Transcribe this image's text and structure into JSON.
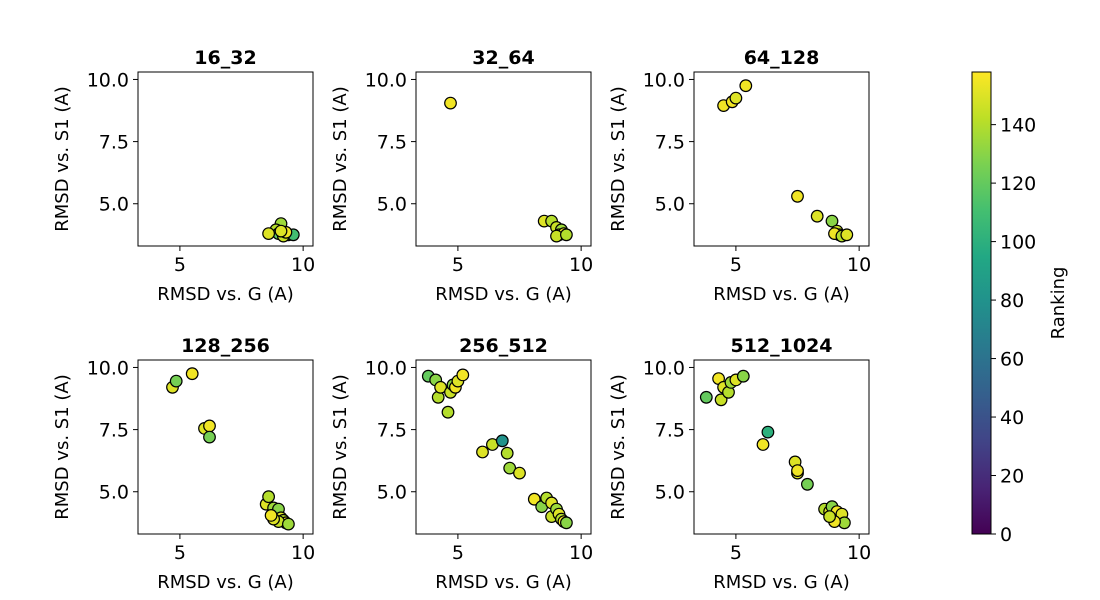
{
  "chart_data": {
    "type": "scatter",
    "xlabel": "RMSD vs. G (A)",
    "ylabel": "RMSD vs. S1 (A)",
    "xlim": [
      3.3,
      10.4
    ],
    "ylim": [
      3.3,
      10.3
    ],
    "xticks": [
      5,
      10
    ],
    "yticks": [
      5.0,
      7.5,
      10.0
    ],
    "xtick_labels": [
      "5",
      "10"
    ],
    "ytick_labels": [
      "5.0",
      "7.5",
      "10.0"
    ],
    "grid": false,
    "colormap": "viridis",
    "colorbar": {
      "label": "Ranking",
      "range": [
        0,
        158
      ],
      "ticks": [
        0,
        20,
        40,
        60,
        80,
        100,
        120,
        140
      ],
      "tick_labels": [
        "0",
        "20",
        "40",
        "60",
        "80",
        "100",
        "120",
        "140"
      ]
    },
    "subplots": [
      {
        "title": "16_32",
        "points": [
          [
            9.4,
            3.75,
            50
          ],
          [
            9.1,
            4.2,
            135
          ],
          [
            8.9,
            3.95,
            140
          ],
          [
            9.0,
            3.8,
            120
          ],
          [
            9.6,
            3.75,
            110
          ],
          [
            9.2,
            3.7,
            145
          ],
          [
            8.6,
            3.8,
            150
          ],
          [
            9.3,
            3.85,
            155
          ],
          [
            9.1,
            3.9,
            150
          ]
        ]
      },
      {
        "title": "32_64",
        "points": [
          [
            4.7,
            9.05,
            155
          ],
          [
            8.5,
            4.3,
            150
          ],
          [
            8.8,
            4.3,
            140
          ],
          [
            9.0,
            4.05,
            145
          ],
          [
            9.2,
            3.95,
            135
          ],
          [
            9.1,
            3.75,
            150
          ],
          [
            9.3,
            3.8,
            155
          ],
          [
            9.0,
            3.7,
            145
          ],
          [
            9.4,
            3.75,
            140
          ]
        ]
      },
      {
        "title": "64_128",
        "points": [
          [
            4.5,
            8.95,
            155
          ],
          [
            4.85,
            9.1,
            155
          ],
          [
            5.0,
            9.25,
            150
          ],
          [
            5.4,
            9.75,
            155
          ],
          [
            7.5,
            5.3,
            155
          ],
          [
            8.3,
            4.5,
            150
          ],
          [
            8.9,
            4.3,
            130
          ],
          [
            9.1,
            3.9,
            145
          ],
          [
            9.2,
            3.75,
            150
          ],
          [
            9.0,
            3.8,
            155
          ],
          [
            9.3,
            3.7,
            140
          ],
          [
            9.5,
            3.75,
            150
          ]
        ]
      },
      {
        "title": "128_256",
        "points": [
          [
            4.7,
            9.2,
            150
          ],
          [
            4.85,
            9.45,
            125
          ],
          [
            5.5,
            9.75,
            155
          ],
          [
            6.0,
            7.55,
            150
          ],
          [
            6.2,
            7.65,
            155
          ],
          [
            6.2,
            7.2,
            125
          ],
          [
            8.5,
            4.5,
            150
          ],
          [
            8.6,
            4.8,
            140
          ],
          [
            8.8,
            4.35,
            135
          ],
          [
            8.9,
            4.1,
            145
          ],
          [
            9.0,
            4.3,
            130
          ],
          [
            9.1,
            3.95,
            150
          ],
          [
            9.2,
            3.85,
            140
          ],
          [
            9.3,
            3.75,
            155
          ],
          [
            9.0,
            3.8,
            145
          ],
          [
            8.8,
            3.9,
            150
          ],
          [
            9.4,
            3.7,
            135
          ],
          [
            8.7,
            4.05,
            155
          ]
        ]
      },
      {
        "title": "256_512",
        "points": [
          [
            3.8,
            9.65,
            120
          ],
          [
            4.1,
            9.5,
            130
          ],
          [
            4.2,
            8.8,
            140
          ],
          [
            4.3,
            9.2,
            150
          ],
          [
            4.6,
            8.2,
            140
          ],
          [
            4.7,
            9.0,
            145
          ],
          [
            4.8,
            9.3,
            130
          ],
          [
            4.9,
            9.2,
            155
          ],
          [
            5.0,
            9.45,
            150
          ],
          [
            5.2,
            9.7,
            155
          ],
          [
            6.0,
            6.6,
            150
          ],
          [
            6.4,
            6.9,
            145
          ],
          [
            6.8,
            7.05,
            80
          ],
          [
            7.0,
            6.55,
            140
          ],
          [
            7.1,
            5.95,
            135
          ],
          [
            7.5,
            5.75,
            150
          ],
          [
            8.1,
            4.7,
            155
          ],
          [
            8.4,
            4.4,
            130
          ],
          [
            8.6,
            4.75,
            140
          ],
          [
            8.8,
            4.55,
            150
          ],
          [
            8.8,
            4.0,
            145
          ],
          [
            9.0,
            4.3,
            135
          ],
          [
            9.1,
            4.1,
            150
          ],
          [
            9.2,
            3.9,
            140
          ],
          [
            9.3,
            3.8,
            155
          ],
          [
            9.4,
            3.75,
            130
          ]
        ]
      },
      {
        "title": "512_1024",
        "points": [
          [
            3.8,
            8.8,
            120
          ],
          [
            4.3,
            9.55,
            155
          ],
          [
            4.4,
            8.7,
            145
          ],
          [
            4.5,
            9.2,
            150
          ],
          [
            4.7,
            9.0,
            140
          ],
          [
            4.8,
            9.4,
            135
          ],
          [
            5.0,
            9.5,
            150
          ],
          [
            5.3,
            9.65,
            130
          ],
          [
            6.1,
            6.9,
            155
          ],
          [
            6.3,
            7.4,
            100
          ],
          [
            7.4,
            6.2,
            150
          ],
          [
            7.5,
            5.75,
            150
          ],
          [
            7.5,
            5.85,
            155
          ],
          [
            7.9,
            5.3,
            125
          ],
          [
            8.6,
            4.3,
            140
          ],
          [
            8.8,
            4.2,
            150
          ],
          [
            8.9,
            4.4,
            130
          ],
          [
            9.0,
            4.0,
            145
          ],
          [
            9.1,
            4.2,
            155
          ],
          [
            9.2,
            3.9,
            140
          ],
          [
            9.3,
            4.1,
            150
          ],
          [
            9.4,
            3.75,
            135
          ],
          [
            9.0,
            3.8,
            155
          ],
          [
            8.8,
            4.0,
            145
          ]
        ]
      }
    ]
  }
}
